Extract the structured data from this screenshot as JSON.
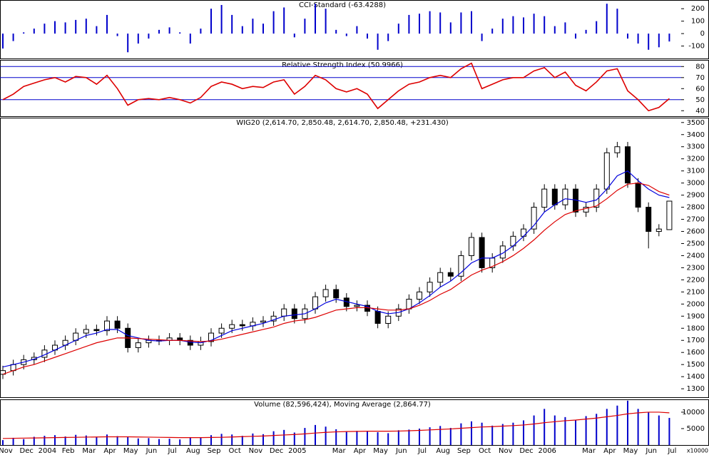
{
  "chart_data": [
    {
      "type": "bar",
      "title": "CCI-Standard (-63.4288)",
      "color": "#0000cc",
      "values": [
        -120,
        -60,
        10,
        40,
        80,
        100,
        90,
        110,
        120,
        60,
        150,
        -20,
        -150,
        -80,
        -40,
        30,
        50,
        10,
        -80,
        40,
        200,
        230,
        150,
        60,
        120,
        80,
        180,
        210,
        -30,
        120,
        240,
        200,
        30,
        -20,
        60,
        -40,
        -130,
        -60,
        80,
        150,
        160,
        180,
        170,
        90,
        170,
        180,
        -60,
        40,
        120,
        140,
        130,
        160,
        140,
        60,
        90,
        -40,
        30,
        100,
        240,
        200,
        -40,
        -80,
        -130,
        -110,
        -63.4288
      ],
      "ylim": [
        -200,
        270
      ],
      "yticks": [
        -100,
        0,
        100,
        200
      ]
    },
    {
      "type": "line",
      "title": "Relative Strength Index (50.9966)",
      "color": "#dd0000",
      "reference_color": "#0000cc",
      "values": [
        50,
        55,
        62,
        65,
        68,
        70,
        66,
        71,
        70,
        64,
        72,
        60,
        45,
        50,
        51,
        50,
        52,
        50,
        47,
        52,
        62,
        66,
        64,
        60,
        62,
        61,
        66,
        68,
        55,
        62,
        72,
        68,
        60,
        57,
        60,
        55,
        42,
        50,
        58,
        64,
        66,
        70,
        72,
        70,
        78,
        83,
        60,
        64,
        68,
        70,
        70,
        76,
        79,
        70,
        75,
        63,
        58,
        66,
        76,
        78,
        58,
        50,
        40,
        43,
        50.9966
      ],
      "reference_lines": [
        80,
        70,
        50
      ],
      "ylim": [
        35,
        86
      ],
      "yticks": [
        40,
        50,
        60,
        70,
        80
      ]
    },
    {
      "type": "candlestick",
      "title": "WIG20 (2,614.70, 2,850.48, 2,614.70, 2,850.48, +231.430)",
      "up_color": "#ffffff",
      "down_color": "#000000",
      "open": [
        1420,
        1450,
        1500,
        1540,
        1560,
        1620,
        1660,
        1700,
        1760,
        1790,
        1780,
        1860,
        1800,
        1640,
        1680,
        1700,
        1700,
        1720,
        1700,
        1660,
        1690,
        1760,
        1800,
        1830,
        1820,
        1850,
        1860,
        1900,
        1960,
        1880,
        1960,
        2060,
        2120,
        2050,
        1980,
        1990,
        1940,
        1840,
        1900,
        1960,
        2040,
        2100,
        2180,
        2260,
        2230,
        2400,
        2550,
        2300,
        2380,
        2480,
        2560,
        2620,
        2800,
        2950,
        2820,
        2950,
        2760,
        2800,
        2950,
        3250,
        3300,
        3000,
        2800,
        2600,
        2614.7
      ],
      "high": [
        1490,
        1540,
        1580,
        1600,
        1660,
        1700,
        1740,
        1800,
        1830,
        1830,
        1900,
        1900,
        1840,
        1720,
        1740,
        1740,
        1760,
        1760,
        1740,
        1730,
        1800,
        1840,
        1870,
        1870,
        1890,
        1900,
        1940,
        2000,
        2000,
        2000,
        2100,
        2160,
        2160,
        2090,
        2030,
        2030,
        1980,
        1940,
        2000,
        2080,
        2140,
        2220,
        2300,
        2300,
        2440,
        2590,
        2590,
        2420,
        2520,
        2600,
        2660,
        2840,
        2990,
        2990,
        2990,
        2990,
        2840,
        2990,
        3290,
        3340,
        3340,
        3040,
        2840,
        2660,
        2850.48
      ],
      "low": [
        1380,
        1410,
        1460,
        1500,
        1520,
        1580,
        1620,
        1660,
        1720,
        1740,
        1740,
        1760,
        1600,
        1600,
        1640,
        1660,
        1660,
        1660,
        1620,
        1620,
        1650,
        1720,
        1760,
        1780,
        1780,
        1810,
        1820,
        1860,
        1840,
        1840,
        1920,
        2020,
        2010,
        1940,
        1940,
        1900,
        1800,
        1800,
        1860,
        1920,
        2000,
        2060,
        2140,
        2190,
        2190,
        2360,
        2260,
        2260,
        2340,
        2440,
        2520,
        2580,
        2760,
        2780,
        2780,
        2720,
        2720,
        2760,
        2910,
        3210,
        2960,
        2760,
        2460,
        2560,
        2614.7
      ],
      "close": [
        1450,
        1500,
        1540,
        1560,
        1620,
        1660,
        1700,
        1760,
        1790,
        1780,
        1860,
        1800,
        1640,
        1680,
        1700,
        1700,
        1720,
        1700,
        1660,
        1690,
        1760,
        1800,
        1830,
        1820,
        1850,
        1860,
        1900,
        1960,
        1880,
        1960,
        2060,
        2120,
        2050,
        1980,
        1990,
        1940,
        1840,
        1900,
        1960,
        2040,
        2100,
        2180,
        2260,
        2230,
        2400,
        2550,
        2300,
        2380,
        2480,
        2560,
        2620,
        2800,
        2950,
        2820,
        2950,
        2760,
        2800,
        2950,
        3250,
        3300,
        3000,
        2800,
        2600,
        2620,
        2850.48
      ],
      "overlays": [
        {
          "color": "#0000dd",
          "values": [
            1480,
            1500,
            1520,
            1545,
            1580,
            1620,
            1660,
            1700,
            1740,
            1760,
            1790,
            1790,
            1740,
            1720,
            1700,
            1695,
            1700,
            1700,
            1685,
            1680,
            1700,
            1740,
            1780,
            1800,
            1820,
            1840,
            1870,
            1900,
            1910,
            1920,
            1960,
            2010,
            2040,
            2020,
            2000,
            1980,
            1940,
            1920,
            1930,
            1960,
            2010,
            2070,
            2140,
            2190,
            2260,
            2340,
            2380,
            2380,
            2420,
            2480,
            2560,
            2650,
            2760,
            2820,
            2870,
            2860,
            2840,
            2860,
            2950,
            3060,
            3100,
            3020,
            2950,
            2900,
            2880
          ]
        },
        {
          "color": "#dd0000",
          "values": [
            1420,
            1450,
            1480,
            1500,
            1530,
            1560,
            1590,
            1620,
            1650,
            1680,
            1700,
            1720,
            1720,
            1715,
            1710,
            1705,
            1700,
            1700,
            1695,
            1690,
            1695,
            1710,
            1730,
            1750,
            1770,
            1790,
            1810,
            1840,
            1860,
            1870,
            1890,
            1920,
            1950,
            1960,
            1970,
            1970,
            1960,
            1950,
            1950,
            1960,
            1990,
            2030,
            2080,
            2120,
            2180,
            2240,
            2280,
            2310,
            2350,
            2400,
            2460,
            2530,
            2610,
            2680,
            2740,
            2770,
            2790,
            2810,
            2870,
            2940,
            2990,
            3000,
            2980,
            2930,
            2900
          ]
        }
      ],
      "ylim": [
        1230,
        3540
      ],
      "yticks": [
        1300,
        1400,
        1500,
        1600,
        1700,
        1800,
        1900,
        2000,
        2100,
        2200,
        2300,
        2400,
        2500,
        2600,
        2700,
        2800,
        2900,
        3000,
        3100,
        3200,
        3300,
        3400,
        3500
      ]
    },
    {
      "type": "bar",
      "title": "Volume (82,596,424), Moving Average (2,864.77)",
      "color": "#0000cc",
      "unit_label": "x10000",
      "categories": [
        "Nov",
        null,
        "Dec",
        null,
        "2004",
        null,
        "Feb",
        null,
        "Mar",
        null,
        "Apr",
        null,
        "May",
        null,
        "Jun",
        null,
        "Jul",
        null,
        "Aug",
        null,
        "Sep",
        null,
        "Oct",
        null,
        "Nov",
        null,
        "Dec",
        null,
        "2005",
        null,
        null,
        null,
        "Mar",
        null,
        "Apr",
        null,
        "May",
        null,
        "Jun",
        null,
        "Jul",
        null,
        "Aug",
        null,
        "Sep",
        null,
        "Oct",
        null,
        "Nov",
        null,
        "Dec",
        null,
        "2006",
        null,
        null,
        null,
        "Mar",
        null,
        "Apr",
        null,
        "May",
        null,
        "Jun",
        null,
        "Jul"
      ],
      "values": [
        1500,
        2200,
        1800,
        2500,
        2800,
        3000,
        2600,
        3100,
        2900,
        2400,
        3200,
        2700,
        2600,
        2000,
        2100,
        1800,
        1900,
        1700,
        2200,
        2300,
        3000,
        3400,
        3200,
        2800,
        3500,
        3300,
        4200,
        4600,
        3800,
        5200,
        6100,
        5600,
        4800,
        4000,
        4300,
        4100,
        3900,
        3600,
        4500,
        4700,
        5000,
        5400,
        5800,
        5200,
        6600,
        7200,
        6800,
        5900,
        6400,
        6800,
        7500,
        9000,
        11000,
        9000,
        8500,
        7600,
        8800,
        9500,
        11000,
        12000,
        13500,
        11000,
        10000,
        9000,
        8259.6424
      ],
      "overlays": [
        {
          "color": "#dd0000",
          "values": [
            2000,
            2050,
            2100,
            2150,
            2200,
            2250,
            2300,
            2350,
            2400,
            2450,
            2500,
            2500,
            2500,
            2450,
            2400,
            2350,
            2300,
            2250,
            2250,
            2250,
            2300,
            2350,
            2450,
            2550,
            2650,
            2750,
            2900,
            3050,
            3200,
            3400,
            3650,
            3850,
            4000,
            4100,
            4150,
            4200,
            4200,
            4200,
            4250,
            4350,
            4450,
            4600,
            4750,
            4900,
            5100,
            5300,
            5500,
            5600,
            5750,
            5900,
            6100,
            6400,
            6800,
            7100,
            7400,
            7600,
            7900,
            8200,
            8600,
            9000,
            9500,
            9800,
            10000,
            10000,
            9800
          ]
        }
      ],
      "ylim": [
        0,
        13900
      ],
      "yticks": [
        5000,
        10000
      ]
    }
  ]
}
